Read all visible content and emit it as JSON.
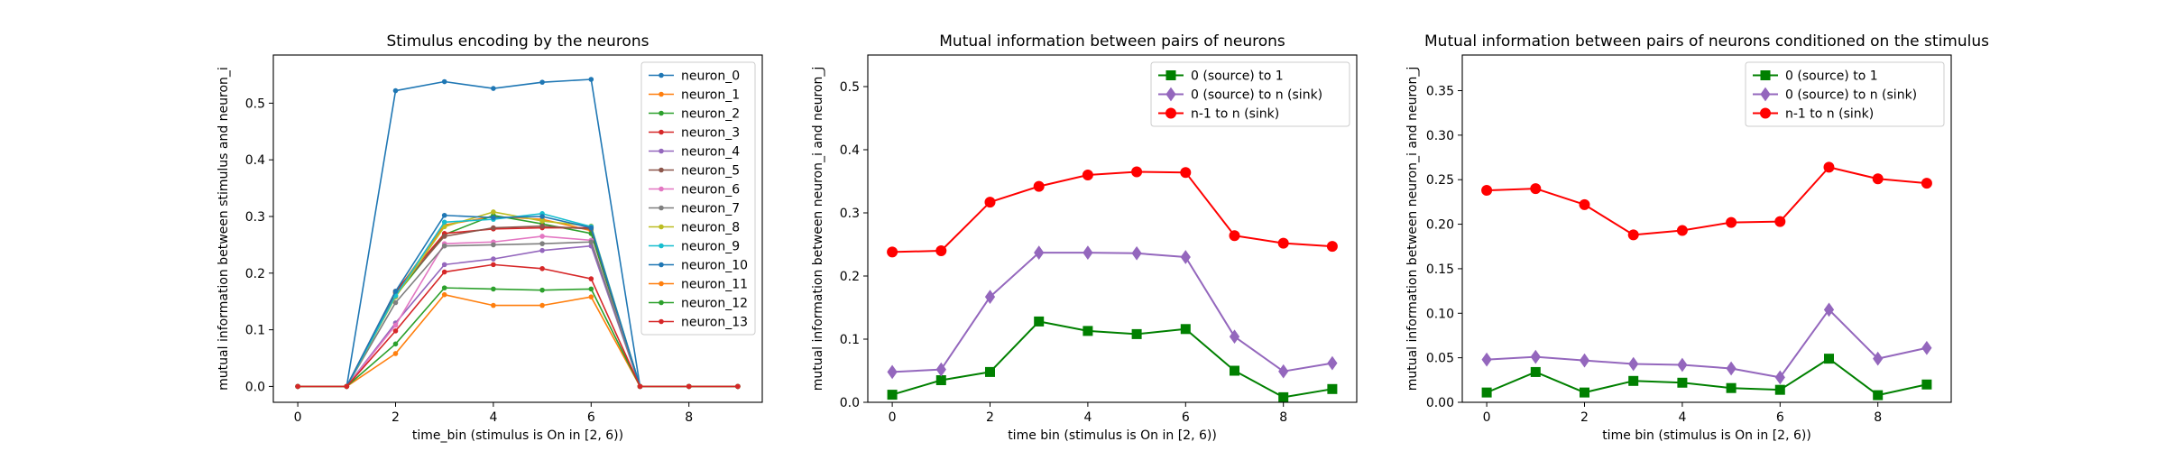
{
  "chart_data": [
    {
      "type": "line",
      "title": "Stimulus encoding by the neurons",
      "xlabel": "time_bin (stimulus is On in [2, 6))",
      "ylabel": "mutual information between stimulus and neuron_i",
      "xlim": [
        -0.5,
        9.5
      ],
      "ylim": [
        -0.028,
        0.585
      ],
      "xticks": [
        0,
        2,
        4,
        6,
        8
      ],
      "yticks": [
        0.0,
        0.1,
        0.2,
        0.3,
        0.4,
        0.5
      ],
      "ytick_format": "0.0",
      "grid": false,
      "legend": "top-right",
      "x": [
        0,
        1,
        2,
        3,
        4,
        5,
        6,
        7,
        8,
        9
      ],
      "series": [
        {
          "name": "neuron_0",
          "color": "#1f77b4",
          "marker": "dot",
          "values": [
            0,
            0,
            0.522,
            0.538,
            0.526,
            0.537,
            0.542,
            0,
            0,
            0
          ]
        },
        {
          "name": "neuron_1",
          "color": "#ff7f0e",
          "marker": "dot",
          "values": [
            0,
            0,
            0.165,
            0.285,
            0.3,
            0.295,
            0.275,
            0,
            0,
            0
          ]
        },
        {
          "name": "neuron_2",
          "color": "#2ca02c",
          "marker": "dot",
          "values": [
            0,
            0,
            0.16,
            0.268,
            0.302,
            0.287,
            0.27,
            0,
            0,
            0
          ]
        },
        {
          "name": "neuron_3",
          "color": "#d62728",
          "marker": "dot",
          "values": [
            0,
            0,
            0.168,
            0.27,
            0.278,
            0.28,
            0.28,
            0,
            0,
            0
          ]
        },
        {
          "name": "neuron_4",
          "color": "#9467bd",
          "marker": "dot",
          "values": [
            0,
            0,
            0.112,
            0.215,
            0.225,
            0.24,
            0.248,
            0,
            0,
            0
          ]
        },
        {
          "name": "neuron_5",
          "color": "#8c564b",
          "marker": "dot",
          "values": [
            0,
            0,
            0.165,
            0.265,
            0.28,
            0.283,
            0.278,
            0,
            0,
            0
          ]
        },
        {
          "name": "neuron_6",
          "color": "#e377c2",
          "marker": "dot",
          "values": [
            0,
            0,
            0.108,
            0.252,
            0.255,
            0.265,
            0.258,
            0,
            0,
            0
          ]
        },
        {
          "name": "neuron_7",
          "color": "#7f7f7f",
          "marker": "dot",
          "values": [
            0,
            0,
            0.148,
            0.248,
            0.25,
            0.252,
            0.255,
            0,
            0,
            0
          ]
        },
        {
          "name": "neuron_8",
          "color": "#bcbd22",
          "marker": "dot",
          "values": [
            0,
            0,
            0.158,
            0.282,
            0.308,
            0.292,
            0.283,
            0,
            0,
            0
          ]
        },
        {
          "name": "neuron_9",
          "color": "#17becf",
          "marker": "dot",
          "values": [
            0,
            0,
            0.16,
            0.29,
            0.295,
            0.305,
            0.282,
            0,
            0,
            0
          ]
        },
        {
          "name": "neuron_10",
          "color": "#1f77b4",
          "marker": "dot",
          "values": [
            0,
            0,
            0.168,
            0.302,
            0.298,
            0.3,
            0.28,
            0,
            0,
            0
          ]
        },
        {
          "name": "neuron_11",
          "color": "#ff7f0e",
          "marker": "dot",
          "values": [
            0,
            0,
            0.058,
            0.162,
            0.143,
            0.143,
            0.158,
            0,
            0,
            0
          ]
        },
        {
          "name": "neuron_12",
          "color": "#2ca02c",
          "marker": "dot",
          "values": [
            0,
            0,
            0.075,
            0.174,
            0.172,
            0.17,
            0.172,
            0,
            0,
            0
          ]
        },
        {
          "name": "neuron_13",
          "color": "#d62728",
          "marker": "dot",
          "values": [
            0,
            0,
            0.098,
            0.202,
            0.215,
            0.208,
            0.19,
            0,
            0,
            0
          ]
        }
      ]
    },
    {
      "type": "line",
      "title": "Mutual information between pairs of neurons",
      "xlabel": "time bin (stimulus is On in [2, 6))",
      "ylabel": "mutual information between neuron_i and neuron_j",
      "xlim": [
        -0.5,
        9.5
      ],
      "ylim": [
        0.0,
        0.55
      ],
      "xticks": [
        0,
        2,
        4,
        6,
        8
      ],
      "yticks": [
        0.0,
        0.1,
        0.2,
        0.3,
        0.4,
        0.5
      ],
      "ytick_format": "0.0",
      "grid": false,
      "legend": "top-right",
      "x": [
        0,
        1,
        2,
        3,
        4,
        5,
        6,
        7,
        8,
        9
      ],
      "series": [
        {
          "name": "0 (source) to 1",
          "color": "#008000",
          "marker": "square",
          "values": [
            0.012,
            0.035,
            0.048,
            0.128,
            0.113,
            0.108,
            0.116,
            0.05,
            0.008,
            0.021
          ]
        },
        {
          "name": "0 (source) to n (sink)",
          "color": "#9467bd",
          "marker": "diamond",
          "values": [
            0.048,
            0.052,
            0.167,
            0.237,
            0.237,
            0.236,
            0.23,
            0.104,
            0.049,
            0.062
          ]
        },
        {
          "name": "n-1 to n (sink)",
          "color": "#ff0000",
          "marker": "circle",
          "values": [
            0.238,
            0.24,
            0.317,
            0.342,
            0.36,
            0.365,
            0.364,
            0.264,
            0.252,
            0.247
          ]
        }
      ]
    },
    {
      "type": "line",
      "title": "Mutual information between pairs of neurons conditioned on the stimulus",
      "xlabel": "time bin (stimulus is On in [2, 6))",
      "ylabel": "mutual information between neuron_i and neuron_j",
      "xlim": [
        -0.5,
        9.5
      ],
      "ylim": [
        0.0,
        0.39
      ],
      "xticks": [
        0,
        2,
        4,
        6,
        8
      ],
      "yticks": [
        0.0,
        0.05,
        0.1,
        0.15,
        0.2,
        0.25,
        0.3,
        0.35
      ],
      "ytick_format": "0.00",
      "grid": false,
      "legend": "top-right",
      "x": [
        0,
        1,
        2,
        3,
        4,
        5,
        6,
        7,
        8,
        9
      ],
      "series": [
        {
          "name": "0 (source) to 1",
          "color": "#008000",
          "marker": "square",
          "values": [
            0.011,
            0.034,
            0.011,
            0.024,
            0.022,
            0.016,
            0.014,
            0.049,
            0.008,
            0.02
          ]
        },
        {
          "name": "0 (source) to n (sink)",
          "color": "#9467bd",
          "marker": "diamond",
          "values": [
            0.048,
            0.051,
            0.047,
            0.043,
            0.042,
            0.038,
            0.028,
            0.104,
            0.049,
            0.061
          ]
        },
        {
          "name": "n-1 to n (sink)",
          "color": "#ff0000",
          "marker": "circle",
          "values": [
            0.238,
            0.24,
            0.222,
            0.188,
            0.193,
            0.202,
            0.203,
            0.264,
            0.251,
            0.246
          ]
        }
      ]
    }
  ]
}
